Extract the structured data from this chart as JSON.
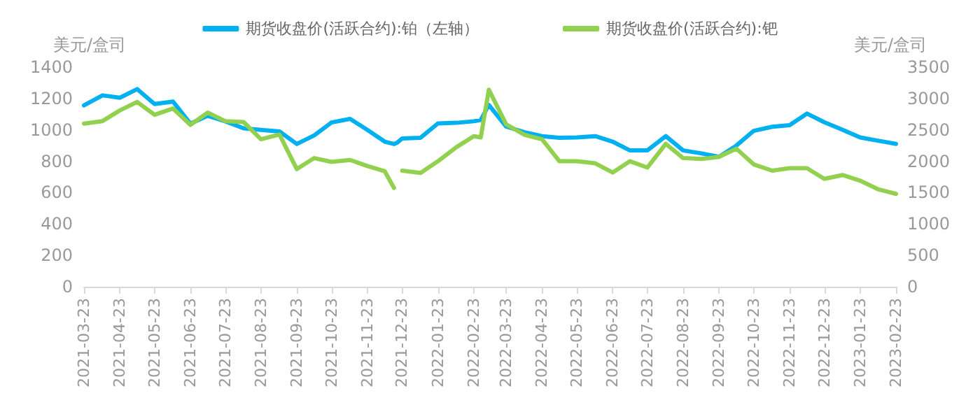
{
  "chart_data": {
    "type": "line",
    "x": [
      "2021-03-23",
      "2021-04-08",
      "2021-04-23",
      "2021-05-08",
      "2021-05-23",
      "2021-06-08",
      "2021-06-23",
      "2021-07-08",
      "2021-07-23",
      "2021-08-08",
      "2021-08-23",
      "2021-09-08",
      "2021-09-23",
      "2021-10-08",
      "2021-10-23",
      "2021-11-08",
      "2021-11-23",
      "2021-12-08",
      "2021-12-16",
      "2021-12-19",
      "2021-12-23",
      "2022-01-08",
      "2022-01-23",
      "2022-02-08",
      "2022-02-23",
      "2022-03-01",
      "2022-03-08",
      "2022-03-23",
      "2022-04-08",
      "2022-04-23",
      "2022-05-08",
      "2022-05-23",
      "2022-06-08",
      "2022-06-23",
      "2022-07-08",
      "2022-07-23",
      "2022-08-08",
      "2022-08-23",
      "2022-09-08",
      "2022-09-23",
      "2022-10-08",
      "2022-10-23",
      "2022-11-08",
      "2022-11-23",
      "2022-12-08",
      "2022-12-23",
      "2023-01-08",
      "2023-01-23",
      "2023-02-08",
      "2023-02-23"
    ],
    "series": [
      {
        "name": "期货收盘价(活跃合约):铂（左轴）",
        "color": "#00b0f0",
        "values": [
          1156,
          1220,
          1205,
          1260,
          1165,
          1180,
          1040,
          1090,
          1055,
          1010,
          1000,
          990,
          910,
          965,
          1047,
          1070,
          1000,
          925,
          910,
          920,
          945,
          950,
          1041,
          1045,
          1055,
          1063,
          1159,
          1021,
          985,
          960,
          950,
          952,
          960,
          925,
          869,
          869,
          960,
          869,
          850,
          828,
          900,
          994,
          1020,
          1030,
          1104,
          1049,
          1000,
          952,
          930,
          911
        ]
      },
      {
        "name": "期货收盘价(活跃合约):钯",
        "color": "#92d050",
        "axis": "y2",
        "values": [
          2600,
          2640,
          2810,
          2945,
          2740,
          2840,
          2580,
          2775,
          2640,
          2625,
          2350,
          2425,
          1875,
          2050,
          1990,
          2020,
          1925,
          1840,
          1575,
          null,
          1850,
          1815,
          2000,
          2225,
          2400,
          2380,
          3140,
          2588,
          2420,
          2350,
          2000,
          2000,
          1967,
          1820,
          2000,
          1900,
          2277,
          2050,
          2036,
          2070,
          2200,
          1950,
          1850,
          1890,
          1890,
          1720,
          1780,
          1691,
          1550,
          1480
        ]
      }
    ],
    "ylabel": "美元/盒司",
    "y2label": "美元/盒司",
    "ylim": [
      0,
      1400
    ],
    "yticks": [
      0,
      200,
      400,
      600,
      800,
      1000,
      1200,
      1400
    ],
    "y2lim": [
      0,
      3500
    ],
    "y2ticks": [
      0,
      500,
      1000,
      1500,
      2000,
      2500,
      3000,
      3500
    ],
    "xlim": [
      "2021-03-23",
      "2023-02-23"
    ],
    "xticks": [
      "2021-03-23",
      "2021-04-23",
      "2021-05-23",
      "2021-06-23",
      "2021-07-23",
      "2021-08-23",
      "2021-09-23",
      "2021-10-23",
      "2021-11-23",
      "2021-12-23",
      "2022-01-23",
      "2022-02-23",
      "2022-03-23",
      "2022-04-23",
      "2022-05-23",
      "2022-06-23",
      "2022-07-23",
      "2022-08-23",
      "2022-09-23",
      "2022-10-23",
      "2022-11-23",
      "2022-12-23",
      "2023-01-23",
      "2023-02-23"
    ],
    "legend": "top",
    "marker": "none",
    "line_style": "solid"
  }
}
